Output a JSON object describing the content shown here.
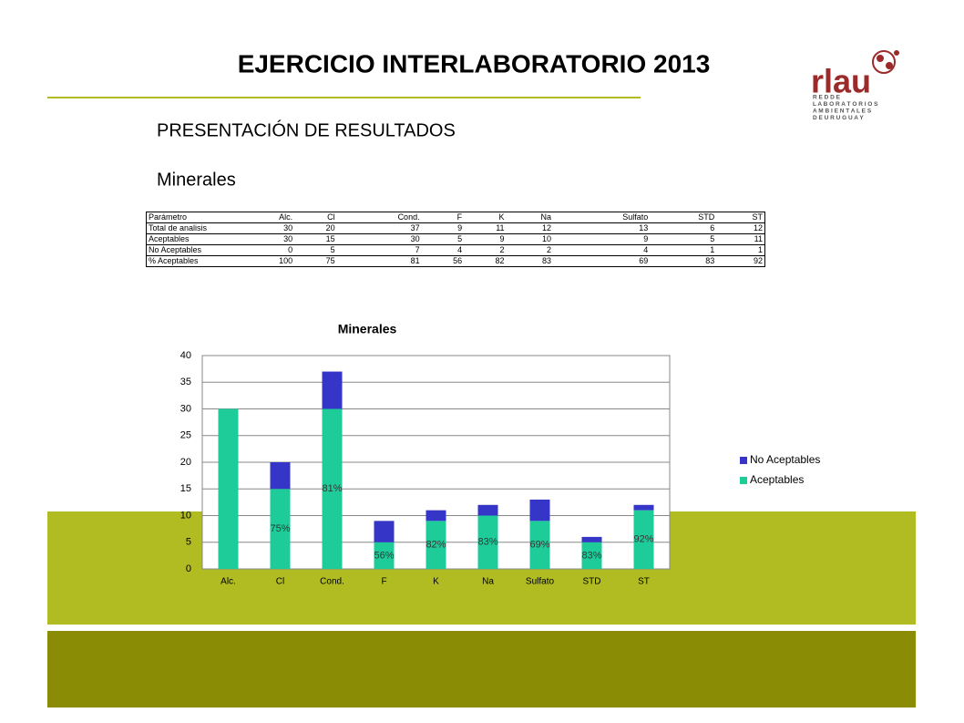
{
  "header": {
    "title": "EJERCICIO INTERLABORATORIO 2013",
    "subtitle": "PRESENTACIÓN DE RESULTADOS",
    "section": "Minerales"
  },
  "logo": {
    "name": "rlau",
    "lines": [
      "R E D   D E",
      "L A B O R A T O R I O S",
      "A M B I E N T A L E S",
      "D E   U R U G U A Y"
    ]
  },
  "table": {
    "header": [
      "Parámetro",
      "Alc.",
      "Cl",
      "Cond.",
      "F",
      "K",
      "Na",
      "Sulfato",
      "STD",
      "ST"
    ],
    "rows": [
      [
        "Total de analisis",
        30,
        20,
        37,
        9,
        11,
        12,
        13,
        6,
        12
      ],
      [
        "Aceptables",
        30,
        15,
        30,
        5,
        9,
        10,
        9,
        5,
        11
      ],
      [
        "No Aceptables",
        0,
        5,
        7,
        4,
        2,
        2,
        4,
        1,
        1
      ],
      [
        "% Aceptables",
        100,
        75,
        81,
        56,
        82,
        83,
        69,
        83,
        92
      ]
    ]
  },
  "chart_data": {
    "type": "stacked_bar",
    "title": "Minerales",
    "categories": [
      "Alc.",
      "Cl",
      "Cond.",
      "F",
      "K",
      "Na",
      "Sulfato",
      "STD",
      "ST"
    ],
    "series": [
      {
        "name": "Aceptables",
        "color": "#1ecc99",
        "values": [
          30,
          15,
          30,
          5,
          9,
          10,
          9,
          5,
          11
        ]
      },
      {
        "name": "No Aceptables",
        "color": "#3535c8",
        "values": [
          0,
          5,
          7,
          4,
          2,
          2,
          4,
          1,
          1
        ]
      }
    ],
    "annotations": [
      null,
      "75%",
      "81%",
      "56%",
      "82%",
      "83%",
      "69%",
      "83%",
      "92%"
    ],
    "ylim": [
      0,
      40
    ],
    "yticks": [
      0,
      5,
      10,
      15,
      20,
      25,
      30,
      35,
      40
    ],
    "grid": true,
    "legend": "right"
  }
}
